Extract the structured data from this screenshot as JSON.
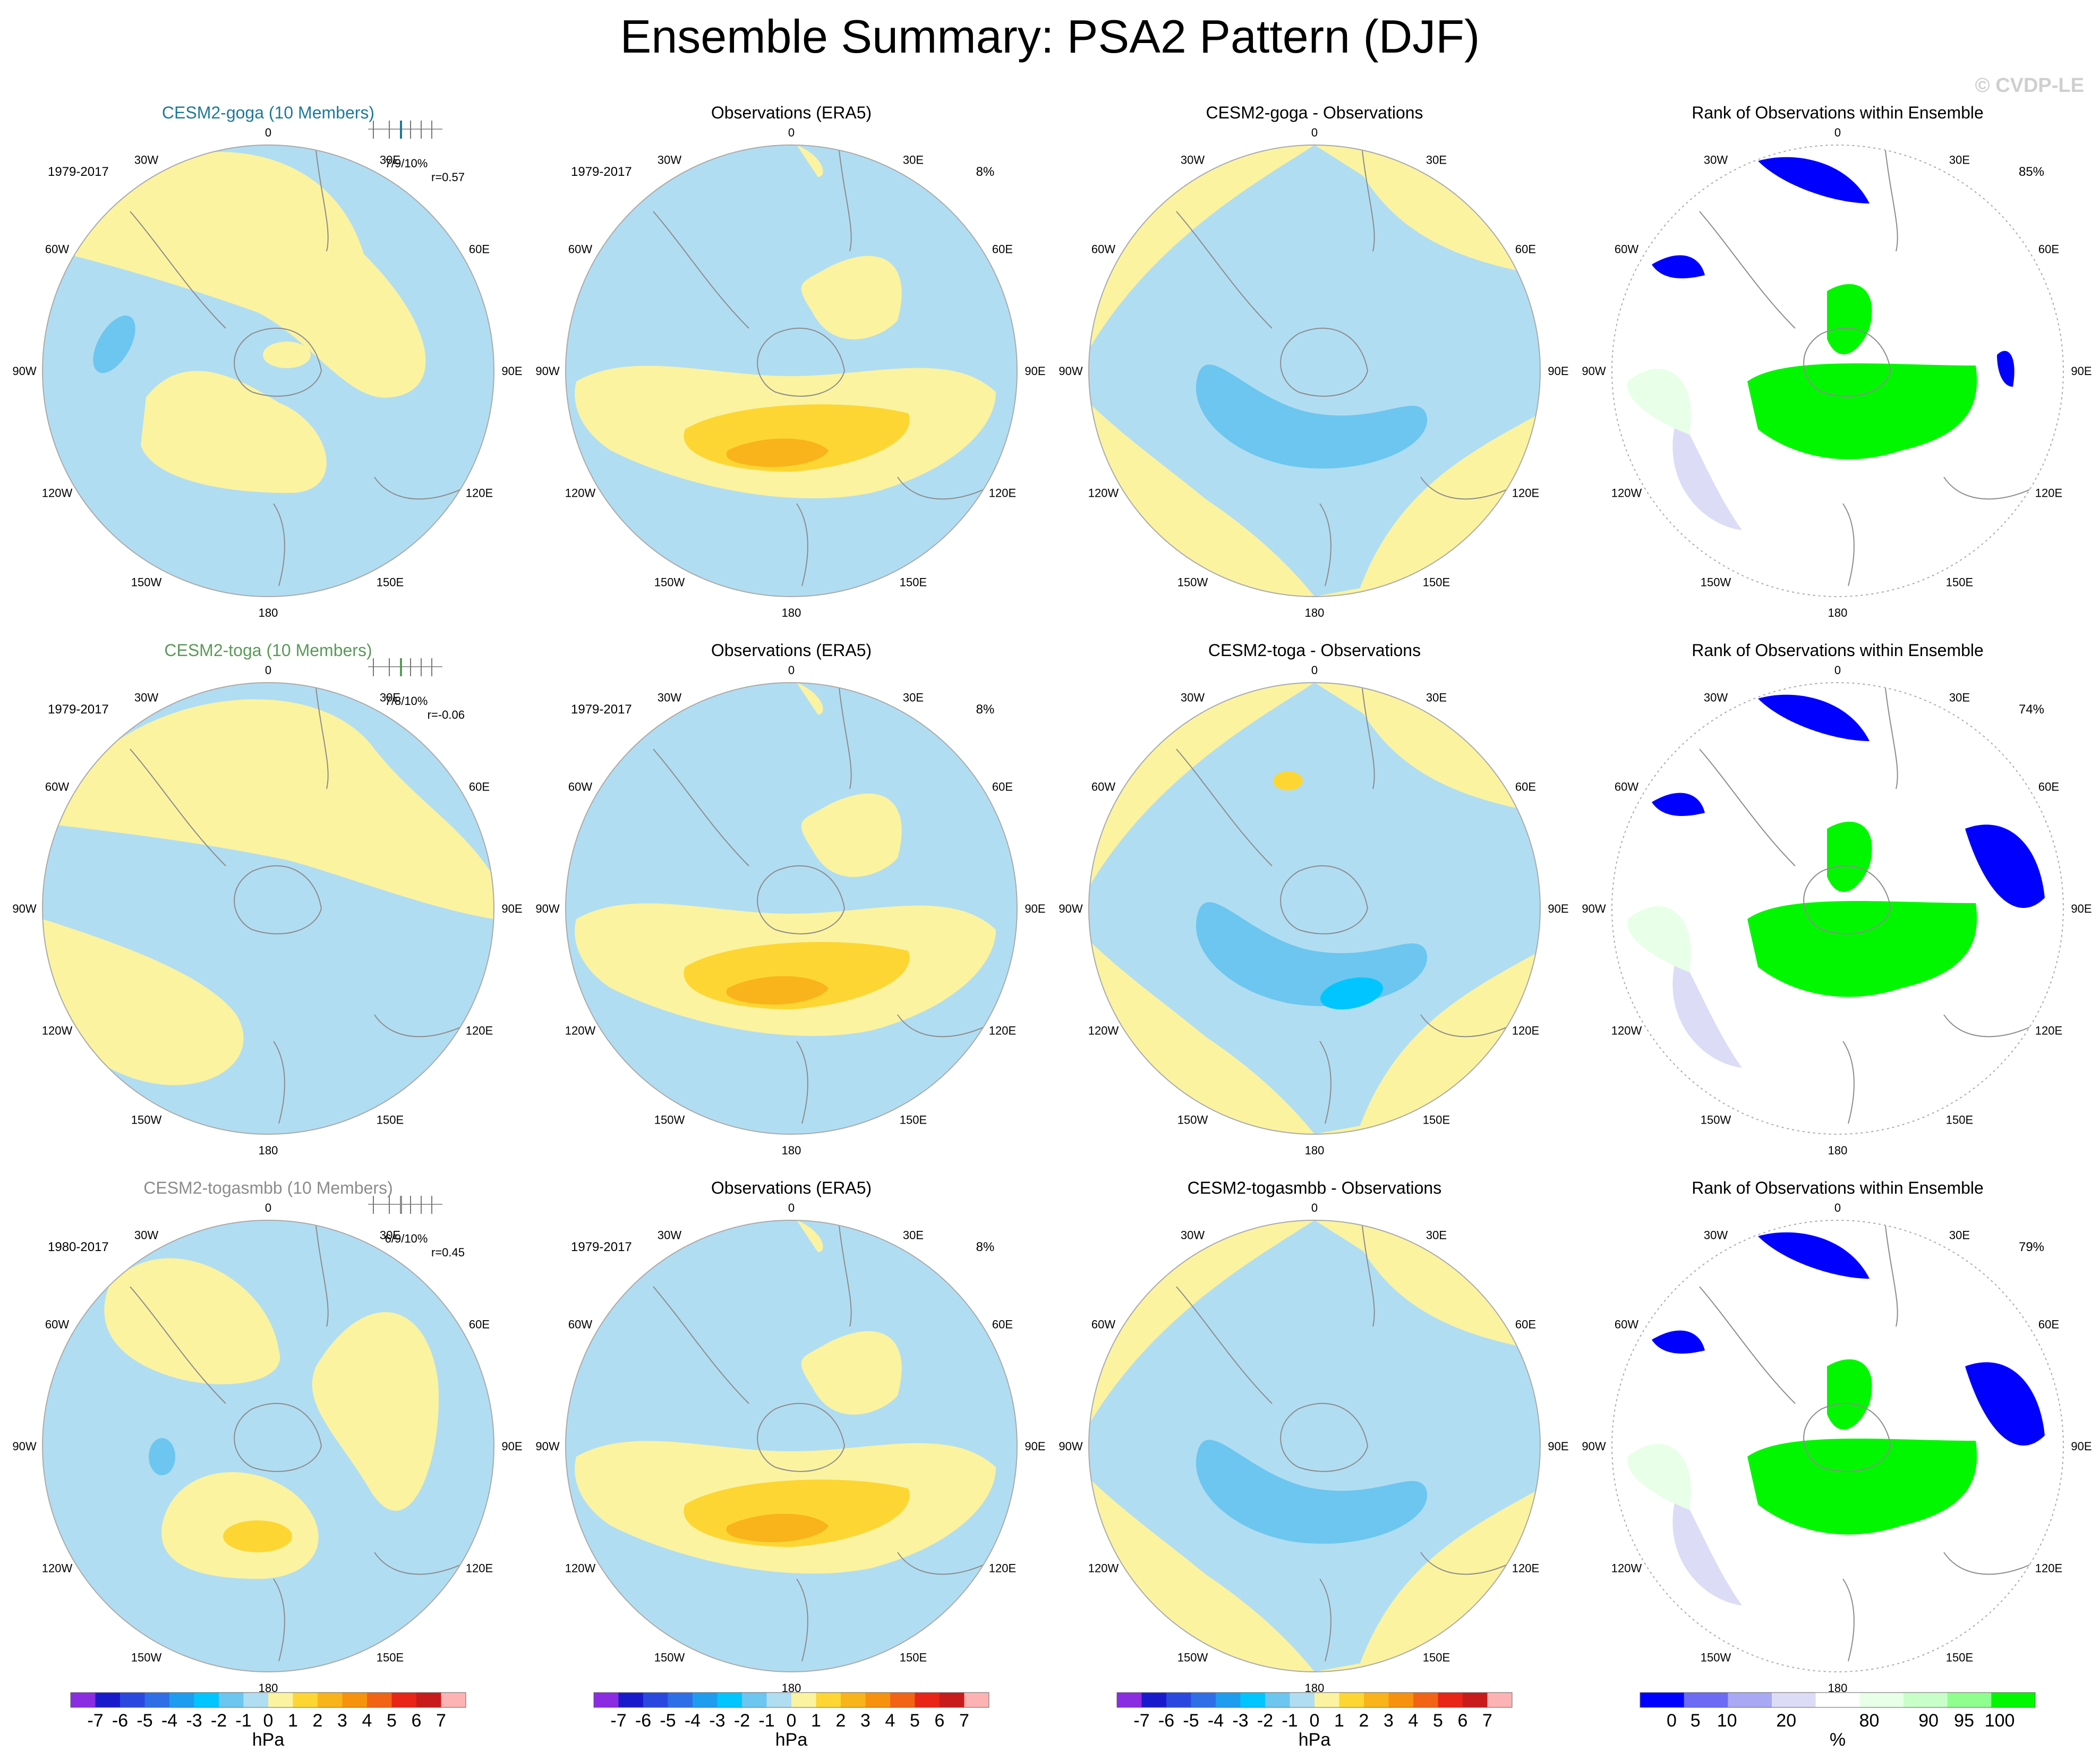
{
  "figure": {
    "title": "Ensemble Summary: PSA2 Pattern (DJF)",
    "watermark": "© CVDP-LE"
  },
  "colors": {
    "land_outline": "#8c8c8c",
    "circle_edge": "#aaaaaa",
    "c_m7": "#8b2be2",
    "c_m6": "#1a1acd",
    "c_m5": "#2a48e0",
    "c_m4": "#2e6fe8",
    "c_m3": "#1e9cf0",
    "c_m2": "#00c5ff",
    "c_m1": "#6cc6ef",
    "c_m0": "#b1ddf2",
    "c_p0": "#fbf3a0",
    "c_p1": "#fdd634",
    "c_p2": "#f9b31b",
    "c_p3": "#f7920f",
    "c_p4": "#f26316",
    "c_p5": "#e82516",
    "c_p6": "#c81b1b",
    "c_p7": "#fdb3b3",
    "r_0": "#0000ff",
    "r_5": "#6b6bf5",
    "r_10": "#a8a8f5",
    "r_20": "#dcdcf7",
    "r_mid": "#ffffff",
    "r_80": "#e8ffe8",
    "r_90": "#c8ffc8",
    "r_95": "#8eff8e",
    "r_100": "#00f700"
  },
  "map_labels": {
    "lon_top": "0",
    "lon_bottom": "180",
    "left": [
      "30W",
      "60W",
      "90W",
      "120W",
      "150W"
    ],
    "right": [
      "30E",
      "60E",
      "90E",
      "120E",
      "150E"
    ]
  },
  "chart_data": [
    {
      "type": "heatmap",
      "row": 0,
      "col": 0,
      "title": "CESM2-goga (10 Members)",
      "title_color": "#1d7a9a",
      "years": "1979-2017",
      "stat": "7/9/10%",
      "corr": "r=0.57",
      "units": "hPa",
      "contours": [
        {
          "region": "central-north",
          "value": 0.5
        },
        {
          "region": "south-middle",
          "value": 0.5
        },
        {
          "region": "west",
          "value": -1.0
        }
      ]
    },
    {
      "type": "heatmap",
      "row": 0,
      "col": 1,
      "title": "Observations (ERA5)",
      "years": "1979-2017",
      "pct": "8%",
      "units": "hPa",
      "contours": [
        {
          "region": "arc",
          "value": 1.5
        },
        {
          "region": "arc-core",
          "value": 2.5
        }
      ]
    },
    {
      "type": "heatmap",
      "row": 0,
      "col": 2,
      "title": "CESM2-goga - Observations",
      "pct": "",
      "units": "hPa",
      "contours": [
        {
          "region": "arc",
          "value": -1.5
        }
      ]
    },
    {
      "type": "heatmap",
      "row": 0,
      "col": 3,
      "title": "Rank of Observations within Ensemble",
      "pct": "85%",
      "units": "%",
      "patches": [
        {
          "region": "south-arc",
          "rank": 100
        },
        {
          "region": "north",
          "rank": 0
        },
        {
          "region": "west",
          "rank": 0
        }
      ]
    },
    {
      "type": "heatmap",
      "row": 1,
      "col": 0,
      "title": "CESM2-toga (10 Members)",
      "title_color": "#5a9a5a",
      "years": "1979-2017",
      "stat": "7/8/10%",
      "corr": "r=-0.06",
      "units": "hPa",
      "contours": [
        {
          "region": "north-east",
          "value": 0.5
        },
        {
          "region": "west",
          "value": -0.5
        }
      ]
    },
    {
      "type": "heatmap",
      "row": 1,
      "col": 1,
      "title": "Observations (ERA5)",
      "years": "1979-2017",
      "pct": "8%",
      "units": "hPa",
      "contours": [
        {
          "region": "arc",
          "value": 1.5
        },
        {
          "region": "arc-core",
          "value": 2.5
        }
      ]
    },
    {
      "type": "heatmap",
      "row": 1,
      "col": 2,
      "title": "CESM2-toga - Observations",
      "pct": "",
      "units": "hPa",
      "contours": [
        {
          "region": "arc",
          "value": -1.5
        },
        {
          "region": "arc-core",
          "value": -2.5
        }
      ]
    },
    {
      "type": "heatmap",
      "row": 1,
      "col": 3,
      "title": "Rank of Observations within Ensemble",
      "pct": "74%",
      "units": "%",
      "patches": [
        {
          "region": "south-arc",
          "rank": 100
        },
        {
          "region": "north",
          "rank": 0
        },
        {
          "region": "east",
          "rank": 0
        }
      ]
    },
    {
      "type": "heatmap",
      "row": 2,
      "col": 0,
      "title": "CESM2-togasmbb (10 Members)",
      "title_color": "#8c8c8c",
      "years": "1980-2017",
      "stat": "6/9/10%",
      "corr": "r=0.45",
      "units": "hPa",
      "contours": [
        {
          "region": "north",
          "value": 0.5
        },
        {
          "region": "south",
          "value": 0.5
        },
        {
          "region": "south-core",
          "value": 1.5
        }
      ]
    },
    {
      "type": "heatmap",
      "row": 2,
      "col": 1,
      "title": "Observations (ERA5)",
      "years": "1979-2017",
      "pct": "8%",
      "units": "hPa",
      "contours": [
        {
          "region": "arc",
          "value": 1.5
        },
        {
          "region": "arc-core",
          "value": 2.5
        }
      ]
    },
    {
      "type": "heatmap",
      "row": 2,
      "col": 2,
      "title": "CESM2-togasmbb - Observations",
      "pct": "",
      "units": "hPa",
      "contours": [
        {
          "region": "arc",
          "value": -1.5
        }
      ]
    },
    {
      "type": "heatmap",
      "row": 2,
      "col": 3,
      "title": "Rank of Observations within Ensemble",
      "pct": "79%",
      "units": "%",
      "patches": [
        {
          "region": "south-arc",
          "rank": 100
        },
        {
          "region": "north",
          "rank": 0
        },
        {
          "region": "east",
          "rank": 0
        }
      ]
    }
  ],
  "colorbars": [
    {
      "units": "hPa",
      "labels": [
        "-7",
        "-6",
        "-5",
        "-4",
        "-3",
        "-2",
        "-1",
        "0",
        "1",
        "2",
        "3",
        "4",
        "5",
        "6",
        "7"
      ],
      "colors": [
        "c_m7",
        "c_m6",
        "c_m5",
        "c_m4",
        "c_m3",
        "c_m2",
        "c_m1",
        "c_m0",
        "c_p0",
        "c_p1",
        "c_p2",
        "c_p3",
        "c_p4",
        "c_p5",
        "c_p6",
        "c_p7"
      ]
    },
    {
      "units": "hPa",
      "labels": [
        "-7",
        "-6",
        "-5",
        "-4",
        "-3",
        "-2",
        "-1",
        "0",
        "1",
        "2",
        "3",
        "4",
        "5",
        "6",
        "7"
      ],
      "colors": [
        "c_m7",
        "c_m6",
        "c_m5",
        "c_m4",
        "c_m3",
        "c_m2",
        "c_m1",
        "c_m0",
        "c_p0",
        "c_p1",
        "c_p2",
        "c_p3",
        "c_p4",
        "c_p5",
        "c_p6",
        "c_p7"
      ]
    },
    {
      "units": "hPa",
      "labels": [
        "-7",
        "-6",
        "-5",
        "-4",
        "-3",
        "-2",
        "-1",
        "0",
        "1",
        "2",
        "3",
        "4",
        "5",
        "6",
        "7"
      ],
      "colors": [
        "c_m7",
        "c_m6",
        "c_m5",
        "c_m4",
        "c_m3",
        "c_m2",
        "c_m1",
        "c_m0",
        "c_p0",
        "c_p1",
        "c_p2",
        "c_p3",
        "c_p4",
        "c_p5",
        "c_p6",
        "c_p7"
      ]
    },
    {
      "units": "%",
      "labels": [
        "0",
        "5",
        "10",
        "20",
        "80",
        "90",
        "95",
        "100"
      ],
      "colors": [
        "r_0",
        "r_5",
        "r_10",
        "r_20",
        "r_mid",
        "r_80",
        "r_90",
        "r_95",
        "r_100"
      ]
    }
  ]
}
